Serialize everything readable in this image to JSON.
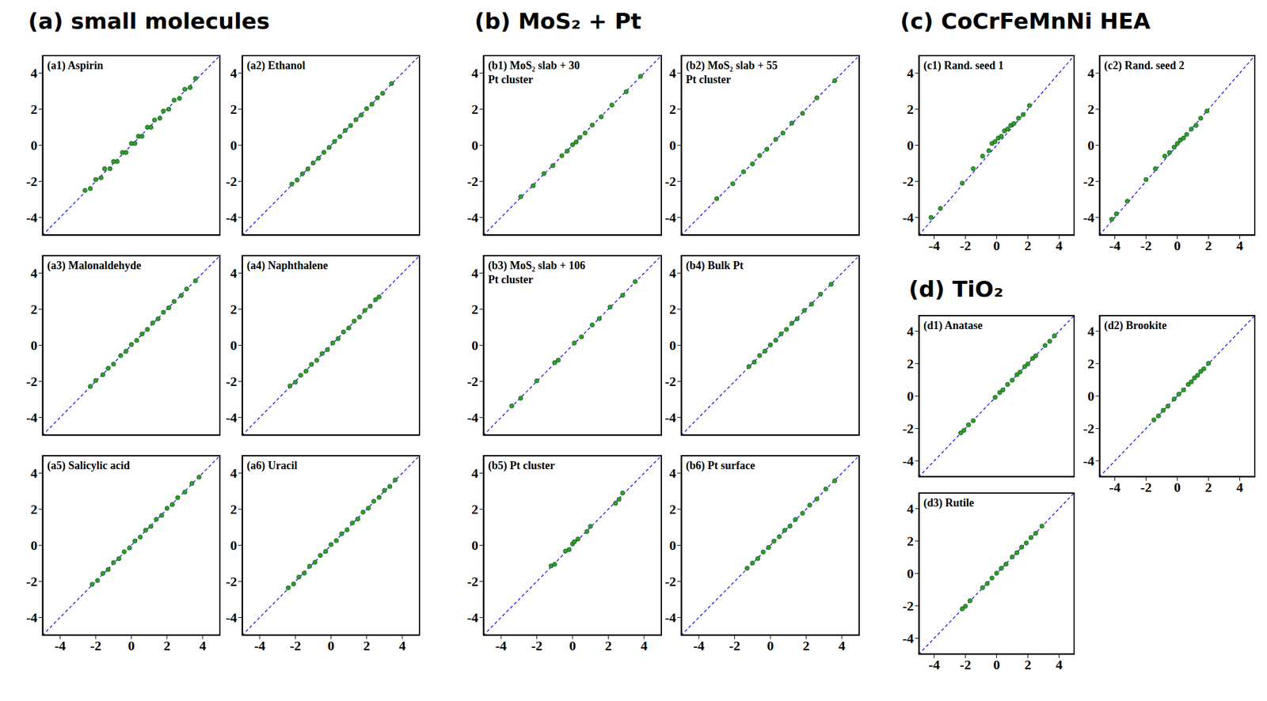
{
  "headings": [
    "(a) small molecules",
    "(b) MoS₂ + Pt",
    "(c) CoCrFeMnNi HEA",
    "(d) TiO₂"
  ],
  "chart_data": [
    {
      "type": "scatter",
      "title": "(a1) Aspirin",
      "xlim": [
        -5,
        5
      ],
      "ylim": [
        -5,
        5
      ],
      "xticks": [
        -4,
        -2,
        0,
        2,
        4
      ],
      "yticks": [
        -4,
        -2,
        0,
        2,
        4
      ],
      "tick_labels": "y",
      "color": "#2ca02c",
      "marker": "o",
      "x": [
        -2.6,
        -2.3,
        -2.0,
        -1.7,
        -1.5,
        -1.2,
        -1.0,
        -0.8,
        -0.5,
        -0.3,
        0,
        0.2,
        0.4,
        0.6,
        0.9,
        1.1,
        1.3,
        1.6,
        1.8,
        2.1,
        2.4,
        2.7,
        3.0,
        3.3,
        3.6
      ],
      "values": [
        -2.5,
        -2.4,
        -1.9,
        -1.8,
        -1.3,
        -1.3,
        -0.9,
        -0.9,
        -0.4,
        -0.4,
        0.1,
        0.1,
        0.5,
        0.5,
        1.0,
        1.0,
        1.4,
        1.5,
        1.9,
        2.0,
        2.5,
        2.6,
        3.1,
        3.2,
        3.7
      ]
    },
    {
      "type": "scatter",
      "title": "(a2) Ethanol",
      "xlim": [
        -5,
        5
      ],
      "ylim": [
        -5,
        5
      ],
      "xticks": [
        -4,
        -2,
        0,
        2,
        4
      ],
      "yticks": [
        -4,
        -2,
        0,
        2,
        4
      ],
      "tick_labels": "y",
      "color": "#2ca02c",
      "marker": "o",
      "x": [
        -2.2,
        -1.9,
        -1.6,
        -1.3,
        -1.0,
        -0.7,
        -0.4,
        -0.1,
        0.2,
        0.5,
        0.8,
        1.1,
        1.4,
        1.7,
        2.0,
        2.3,
        2.6,
        2.9,
        3.4
      ],
      "values": [
        -2.15,
        -1.92,
        -1.58,
        -1.31,
        -0.98,
        -0.72,
        -0.39,
        -0.12,
        0.21,
        0.48,
        0.82,
        1.09,
        1.42,
        1.68,
        2.03,
        2.28,
        2.63,
        2.88,
        3.42
      ]
    },
    {
      "type": "scatter",
      "title": "(a3) Malonaldehyde",
      "xlim": [
        -5,
        5
      ],
      "ylim": [
        -5,
        5
      ],
      "xticks": [
        -4,
        -2,
        0,
        2,
        4
      ],
      "yticks": [
        -4,
        -2,
        0,
        2,
        4
      ],
      "tick_labels": "y",
      "color": "#2ca02c",
      "marker": "o",
      "x": [
        -2.3,
        -2.0,
        -1.6,
        -1.3,
        -1.0,
        -0.6,
        -0.3,
        0,
        0.3,
        0.6,
        0.9,
        1.2,
        1.5,
        1.8,
        2.1,
        2.4,
        2.8,
        3.1,
        3.6
      ],
      "values": [
        -2.28,
        -1.95,
        -1.63,
        -1.27,
        -1.04,
        -0.57,
        -0.33,
        0.04,
        0.27,
        0.63,
        0.88,
        1.24,
        1.47,
        1.83,
        2.08,
        2.43,
        2.76,
        3.12,
        3.58
      ]
    },
    {
      "type": "scatter",
      "title": "(a4) Naphthalene",
      "xlim": [
        -5,
        5
      ],
      "ylim": [
        -5,
        5
      ],
      "xticks": [
        -4,
        -2,
        0,
        2,
        4
      ],
      "yticks": [
        -4,
        -2,
        0,
        2,
        4
      ],
      "tick_labels": "y",
      "color": "#2ca02c",
      "marker": "o",
      "x": [
        -2.3,
        -2.0,
        -1.7,
        -1.4,
        -1.1,
        -0.8,
        -0.5,
        -0.2,
        0.1,
        0.4,
        0.7,
        1.0,
        1.3,
        1.6,
        1.9,
        2.2,
        2.5,
        2.7
      ],
      "values": [
        -2.25,
        -2.04,
        -1.66,
        -1.43,
        -1.06,
        -0.83,
        -0.46,
        -0.24,
        0.13,
        0.37,
        0.74,
        0.96,
        1.34,
        1.57,
        1.93,
        2.17,
        2.53,
        2.68
      ]
    },
    {
      "type": "scatter",
      "title": "(a5) Salicylic acid",
      "xlim": [
        -5,
        5
      ],
      "ylim": [
        -5,
        5
      ],
      "xticks": [
        -4,
        -2,
        0,
        2,
        4
      ],
      "yticks": [
        -4,
        -2,
        0,
        2,
        4
      ],
      "tick_labels": true,
      "color": "#2ca02c",
      "marker": "o",
      "x": [
        -2.2,
        -1.9,
        -1.6,
        -1.3,
        -1.0,
        -0.7,
        -0.4,
        -0.1,
        0.2,
        0.5,
        0.8,
        1.1,
        1.4,
        1.7,
        2.0,
        2.3,
        2.6,
        3.0,
        3.4,
        3.8
      ],
      "values": [
        -2.16,
        -1.95,
        -1.56,
        -1.34,
        -0.96,
        -0.74,
        -0.36,
        -0.14,
        0.24,
        0.46,
        0.84,
        1.05,
        1.44,
        1.66,
        2.05,
        2.26,
        2.64,
        2.95,
        3.43,
        3.78
      ]
    },
    {
      "type": "scatter",
      "title": "(a6) Uracil",
      "xlim": [
        -5,
        5
      ],
      "ylim": [
        -5,
        5
      ],
      "xticks": [
        -4,
        -2,
        0,
        2,
        4
      ],
      "yticks": [
        -4,
        -2,
        0,
        2,
        4
      ],
      "tick_labels": true,
      "color": "#2ca02c",
      "marker": "o",
      "x": [
        -2.4,
        -2.1,
        -1.8,
        -1.5,
        -1.2,
        -0.9,
        -0.6,
        -0.3,
        0,
        0.3,
        0.6,
        0.9,
        1.2,
        1.5,
        1.8,
        2.1,
        2.4,
        2.7,
        3.0,
        3.3,
        3.6
      ],
      "values": [
        -2.36,
        -2.14,
        -1.76,
        -1.54,
        -1.16,
        -0.94,
        -0.56,
        -0.34,
        0.04,
        0.26,
        0.64,
        0.86,
        1.24,
        1.46,
        1.84,
        2.06,
        2.44,
        2.66,
        3.04,
        3.26,
        3.62
      ]
    },
    {
      "type": "scatter",
      "title": "(b1) MoS₂ slab + 30 Pt cluster",
      "xlim": [
        -5,
        5
      ],
      "ylim": [
        -5,
        5
      ],
      "xticks": [
        -4,
        -2,
        0,
        2,
        4
      ],
      "yticks": [
        -4,
        -2,
        0,
        2,
        4
      ],
      "tick_labels": "y",
      "color": "#2ca02c",
      "marker": "o",
      "x": [
        -2.9,
        -2.2,
        -1.6,
        -1.1,
        -0.6,
        -0.3,
        0,
        0.2,
        0.4,
        0.7,
        1.1,
        1.6,
        2.2,
        3.0,
        3.8
      ],
      "values": [
        -2.85,
        -2.24,
        -1.57,
        -1.13,
        -0.58,
        -0.32,
        0.03,
        0.18,
        0.43,
        0.68,
        1.12,
        1.58,
        2.23,
        2.97,
        3.82
      ]
    },
    {
      "type": "scatter",
      "title": "(b2) MoS₂ slab + 55 Pt cluster",
      "xlim": [
        -5,
        5
      ],
      "ylim": [
        -5,
        5
      ],
      "xticks": [
        -4,
        -2,
        0,
        2,
        4
      ],
      "yticks": [
        -4,
        -2,
        0,
        2,
        4
      ],
      "tick_labels": "y",
      "color": "#2ca02c",
      "marker": "o",
      "x": [
        -3.0,
        -2.1,
        -1.5,
        -1.0,
        -0.6,
        -0.2,
        0.3,
        0.7,
        1.2,
        1.8,
        2.6,
        3.6
      ],
      "values": [
        -2.96,
        -2.13,
        -1.47,
        -1.03,
        -0.57,
        -0.22,
        0.33,
        0.68,
        1.23,
        1.77,
        2.63,
        3.58
      ]
    },
    {
      "type": "scatter",
      "title": "(b3) MoS₂ slab + 106 Pt cluster",
      "xlim": [
        -5,
        5
      ],
      "ylim": [
        -5,
        5
      ],
      "xticks": [
        -4,
        -2,
        0,
        2,
        4
      ],
      "yticks": [
        -4,
        -2,
        0,
        2,
        4
      ],
      "tick_labels": "y",
      "color": "#2ca02c",
      "marker": "o",
      "x": [
        -3.4,
        -2.9,
        -2.0,
        -1.0,
        -0.8,
        0.1,
        0.5,
        1.1,
        1.5,
        2.1,
        2.8,
        3.5
      ],
      "values": [
        -3.36,
        -2.93,
        -1.97,
        -0.96,
        -0.82,
        0.13,
        0.47,
        1.13,
        1.48,
        2.12,
        2.77,
        3.53
      ]
    },
    {
      "type": "scatter",
      "title": "(b4) Bulk Pt",
      "xlim": [
        -5,
        5
      ],
      "ylim": [
        -5,
        5
      ],
      "xticks": [
        -4,
        -2,
        0,
        2,
        4
      ],
      "yticks": [
        -4,
        -2,
        0,
        2,
        4
      ],
      "tick_labels": "y",
      "color": "#2ca02c",
      "marker": "o",
      "x": [
        -1.2,
        -0.9,
        -0.6,
        -0.3,
        0,
        0.3,
        0.6,
        0.9,
        1.2,
        1.5,
        1.9,
        2.3,
        2.8,
        3.4
      ],
      "values": [
        -1.18,
        -0.93,
        -0.57,
        -0.32,
        0.02,
        0.28,
        0.63,
        0.88,
        1.22,
        1.47,
        1.93,
        2.28,
        2.83,
        3.38
      ]
    },
    {
      "type": "scatter",
      "title": "(b5) Pt cluster",
      "xlim": [
        -5,
        5
      ],
      "ylim": [
        -5,
        5
      ],
      "xticks": [
        -4,
        -2,
        0,
        2,
        4
      ],
      "yticks": [
        -4,
        -2,
        0,
        2,
        4
      ],
      "tick_labels": true,
      "color": "#2ca02c",
      "marker": "o",
      "x": [
        -1.2,
        -1.0,
        -0.4,
        -0.2,
        0,
        0.1,
        0.3,
        0.8,
        1.0,
        2.4,
        2.6,
        2.8
      ],
      "values": [
        -1.14,
        -1.05,
        -0.32,
        -0.24,
        0.08,
        0.2,
        0.35,
        0.76,
        1.05,
        2.33,
        2.55,
        2.9
      ]
    },
    {
      "type": "scatter",
      "title": "(b6) Pt surface",
      "xlim": [
        -5,
        5
      ],
      "ylim": [
        -5,
        5
      ],
      "xticks": [
        -4,
        -2,
        0,
        2,
        4
      ],
      "yticks": [
        -4,
        -2,
        0,
        2,
        4
      ],
      "tick_labels": true,
      "color": "#2ca02c",
      "marker": "o",
      "x": [
        -1.3,
        -1.0,
        -0.7,
        -0.4,
        -0.1,
        0.2,
        0.5,
        0.8,
        1.1,
        1.4,
        1.8,
        2.2,
        2.6,
        3.1,
        3.6
      ],
      "values": [
        -1.27,
        -0.98,
        -0.73,
        -0.37,
        -0.12,
        0.23,
        0.48,
        0.83,
        1.07,
        1.43,
        1.78,
        2.23,
        2.57,
        3.12,
        3.58
      ]
    },
    {
      "type": "scatter",
      "title": "(c1) Rand. seed 1",
      "xlim": [
        -5,
        5
      ],
      "ylim": [
        -5,
        5
      ],
      "xticks": [
        -4,
        -2,
        0,
        2,
        4
      ],
      "yticks": [
        -4,
        -2,
        0,
        2,
        4
      ],
      "tick_labels": true,
      "color": "#2ca02c",
      "marker": "o",
      "x": [
        -4.2,
        -3.6,
        -2.2,
        -1.5,
        -0.9,
        -0.5,
        -0.3,
        -0.1,
        0.1,
        0.3,
        0.5,
        0.7,
        0.9,
        1.1,
        1.4,
        1.7,
        2.1
      ],
      "values": [
        -4.0,
        -3.5,
        -2.1,
        -1.3,
        -0.6,
        -0.3,
        0.1,
        0.2,
        0.4,
        0.5,
        0.8,
        0.9,
        1.1,
        1.2,
        1.5,
        1.7,
        2.2
      ]
    },
    {
      "type": "scatter",
      "title": "(c2) Rand. seed 2",
      "xlim": [
        -5,
        5
      ],
      "ylim": [
        -5,
        5
      ],
      "xticks": [
        -4,
        -2,
        0,
        2,
        4
      ],
      "yticks": [
        -4,
        -2,
        0,
        2,
        4
      ],
      "tick_labels": true,
      "color": "#2ca02c",
      "marker": "o",
      "x": [
        -4.2,
        -3.9,
        -3.2,
        -2.0,
        -1.4,
        -0.8,
        -0.5,
        -0.2,
        0,
        0.2,
        0.4,
        0.6,
        0.9,
        1.2,
        1.5,
        1.9
      ],
      "values": [
        -4.1,
        -3.8,
        -3.1,
        -1.9,
        -1.3,
        -0.6,
        -0.4,
        -0.1,
        0.1,
        0.3,
        0.4,
        0.6,
        0.9,
        1.1,
        1.5,
        1.9
      ]
    },
    {
      "type": "scatter",
      "title": "(d1) Anatase",
      "xlim": [
        -5,
        5
      ],
      "ylim": [
        -5,
        5
      ],
      "xticks": [
        -4,
        -2,
        0,
        2,
        4
      ],
      "yticks": [
        -4,
        -2,
        0,
        2,
        4
      ],
      "tick_labels": "y",
      "color": "#2ca02c",
      "marker": "o",
      "x": [
        -2.3,
        -2.1,
        -1.8,
        -1.5,
        -0.1,
        0.2,
        0.4,
        0.7,
        1.0,
        1.3,
        1.5,
        1.8,
        2.0,
        2.3,
        2.5,
        3.1,
        3.4,
        3.7
      ],
      "values": [
        -2.27,
        -2.12,
        -1.77,
        -1.52,
        -0.08,
        0.22,
        0.38,
        0.72,
        0.98,
        1.32,
        1.48,
        1.82,
        1.98,
        2.32,
        2.48,
        3.12,
        3.38,
        3.72
      ]
    },
    {
      "type": "scatter",
      "title": "(d2) Brookite",
      "xlim": [
        -5,
        5
      ],
      "ylim": [
        -5,
        5
      ],
      "xticks": [
        -4,
        -2,
        0,
        2,
        4
      ],
      "yticks": [
        -4,
        -2,
        0,
        2,
        4
      ],
      "tick_labels": true,
      "color": "#2ca02c",
      "marker": "o",
      "x": [
        -1.5,
        -1.2,
        -0.9,
        -0.6,
        -0.2,
        0.1,
        0.4,
        0.7,
        0.9,
        1.1,
        1.3,
        1.5,
        1.7,
        2.0
      ],
      "values": [
        -1.47,
        -1.22,
        -0.88,
        -0.62,
        -0.18,
        0.12,
        0.38,
        0.72,
        0.88,
        1.12,
        1.28,
        1.52,
        1.68,
        2.02
      ]
    },
    {
      "type": "scatter",
      "title": "(d3) Rutile",
      "xlim": [
        -5,
        5
      ],
      "ylim": [
        -5,
        5
      ],
      "xticks": [
        -4,
        -2,
        0,
        2,
        4
      ],
      "yticks": [
        -4,
        -2,
        0,
        2,
        4
      ],
      "tick_labels": true,
      "color": "#2ca02c",
      "marker": "o",
      "x": [
        -2.2,
        -2.0,
        -1.7,
        -0.9,
        -0.6,
        -0.3,
        0,
        0.3,
        0.6,
        1.0,
        1.3,
        1.6,
        1.9,
        2.2,
        2.5,
        2.9
      ],
      "values": [
        -2.18,
        -2.02,
        -1.68,
        -0.88,
        -0.62,
        -0.28,
        0.02,
        0.32,
        0.58,
        1.02,
        1.28,
        1.62,
        1.88,
        2.22,
        2.48,
        2.92
      ]
    }
  ]
}
